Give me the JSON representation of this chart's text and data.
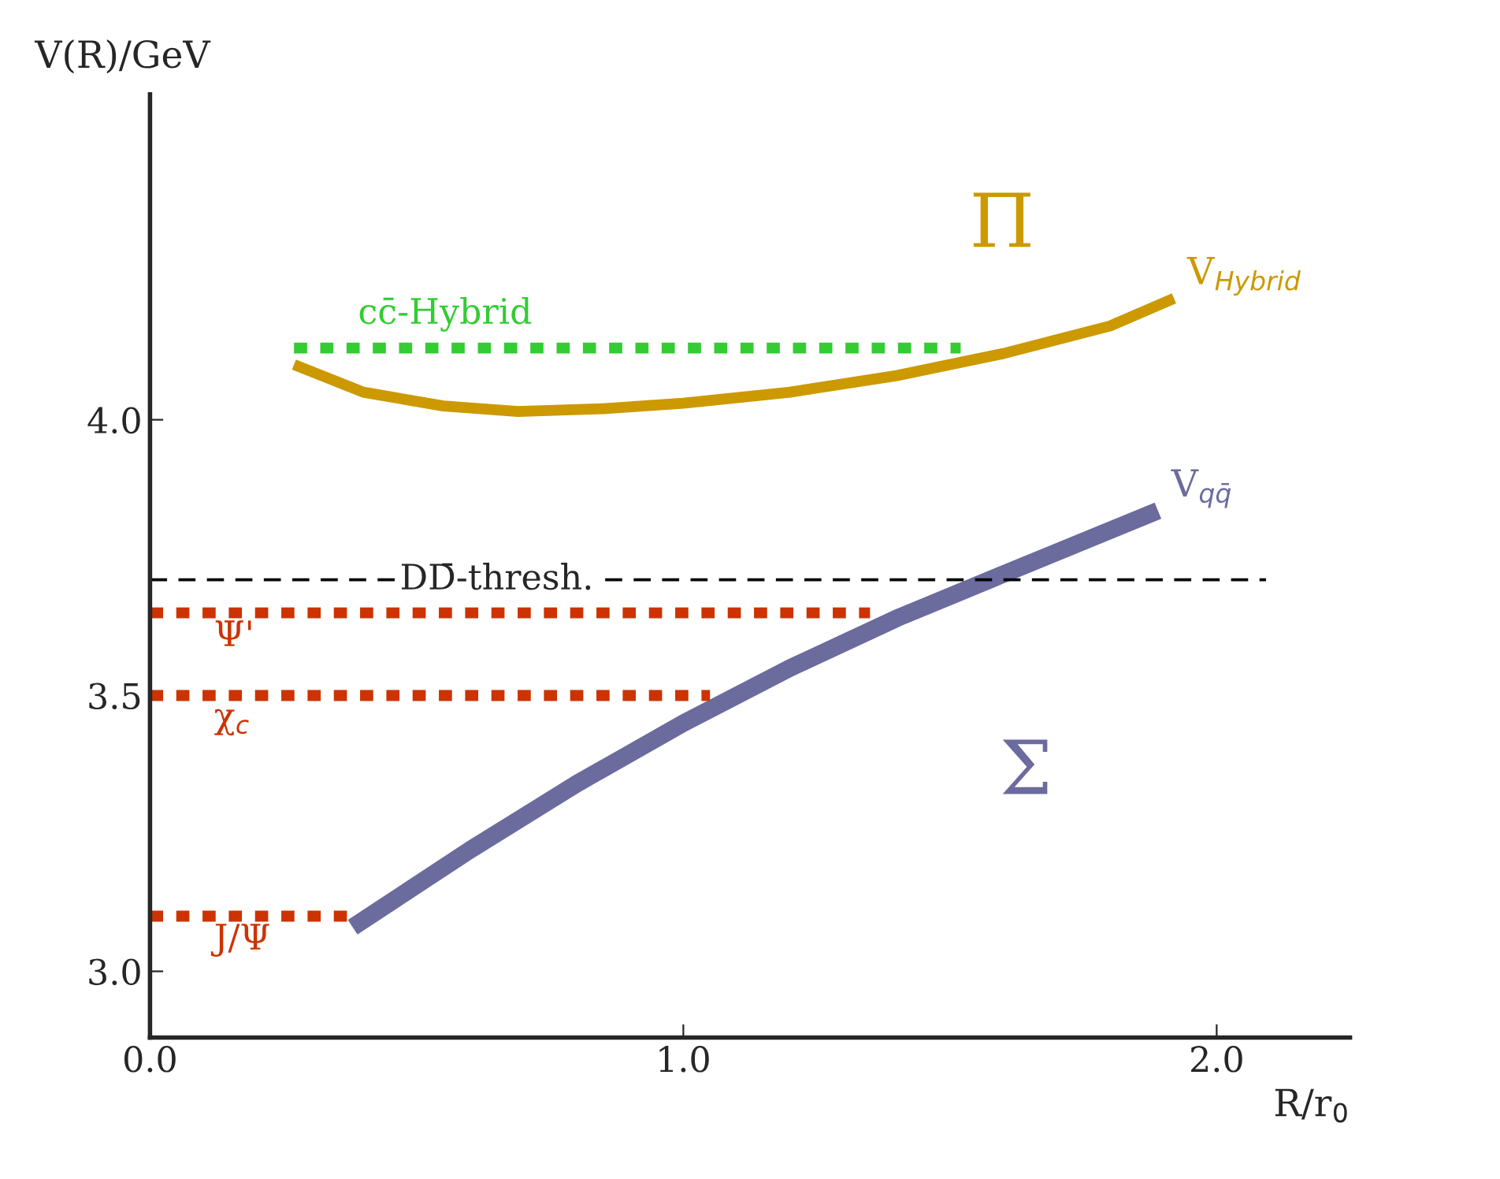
{
  "chart_data": {
    "type": "line",
    "xlabel": "R/r$_{0}$",
    "ylabel": "V(R)/GeV",
    "xlim": [
      0,
      2.25
    ],
    "ylim": [
      2.88,
      4.59
    ],
    "xticks": [
      {
        "value": 0,
        "label": "0.0"
      },
      {
        "value": 1,
        "label": "1.0"
      },
      {
        "value": 2,
        "label": "2.0"
      }
    ],
    "yticks": [
      {
        "value": 3,
        "label": "3.0"
      },
      {
        "value": 3.5,
        "label": "3.5"
      },
      {
        "value": 4,
        "label": "4.0"
      }
    ],
    "grid": false,
    "legend": false,
    "marker": "none",
    "series": [
      {
        "name": "V$_{Hybrid}$",
        "color": "#cc9900",
        "line_style": "solid",
        "x": [
          0.27,
          0.4,
          0.55,
          0.69,
          0.85,
          1.0,
          1.2,
          1.4,
          1.6,
          1.8,
          1.92
        ],
        "values": [
          4.1,
          4.05,
          4.025,
          4.015,
          4.02,
          4.03,
          4.05,
          4.08,
          4.12,
          4.17,
          4.22
        ]
      },
      {
        "name": "V$_{qq̄}$",
        "color": "#6b6b9e",
        "line_style": "solid",
        "x": [
          0.38,
          0.6,
          0.8,
          1.0,
          1.2,
          1.4,
          1.6,
          1.89
        ],
        "values": [
          3.08,
          3.22,
          3.34,
          3.45,
          3.55,
          3.64,
          3.72,
          3.835
        ]
      },
      {
        "name": "cc̄-Hybrid",
        "color": "#33cc33",
        "line_style": "dotted",
        "x": [
          0.27,
          1.52
        ],
        "values": [
          4.13,
          4.13
        ]
      },
      {
        "name": "Ψ'",
        "color": "#cc3300",
        "line_style": "dotted",
        "x": [
          0,
          1.35
        ],
        "values": [
          3.65,
          3.65
        ]
      },
      {
        "name": "χ$_{c}$",
        "color": "#cc3300",
        "line_style": "dotted",
        "x": [
          0,
          1.05
        ],
        "values": [
          3.5,
          3.5
        ]
      },
      {
        "name": "J/Ψ",
        "color": "#cc3300",
        "line_style": "dotted",
        "x": [
          0,
          0.38
        ],
        "values": [
          3.1,
          3.1
        ]
      }
    ],
    "ref_lines": [
      {
        "axis": "y",
        "value": 3.71,
        "label": "DD̄-thresh.",
        "color": "#000000",
        "line_style": "dashed"
      }
    ],
    "annotations": [
      "Π",
      "Σ"
    ]
  }
}
